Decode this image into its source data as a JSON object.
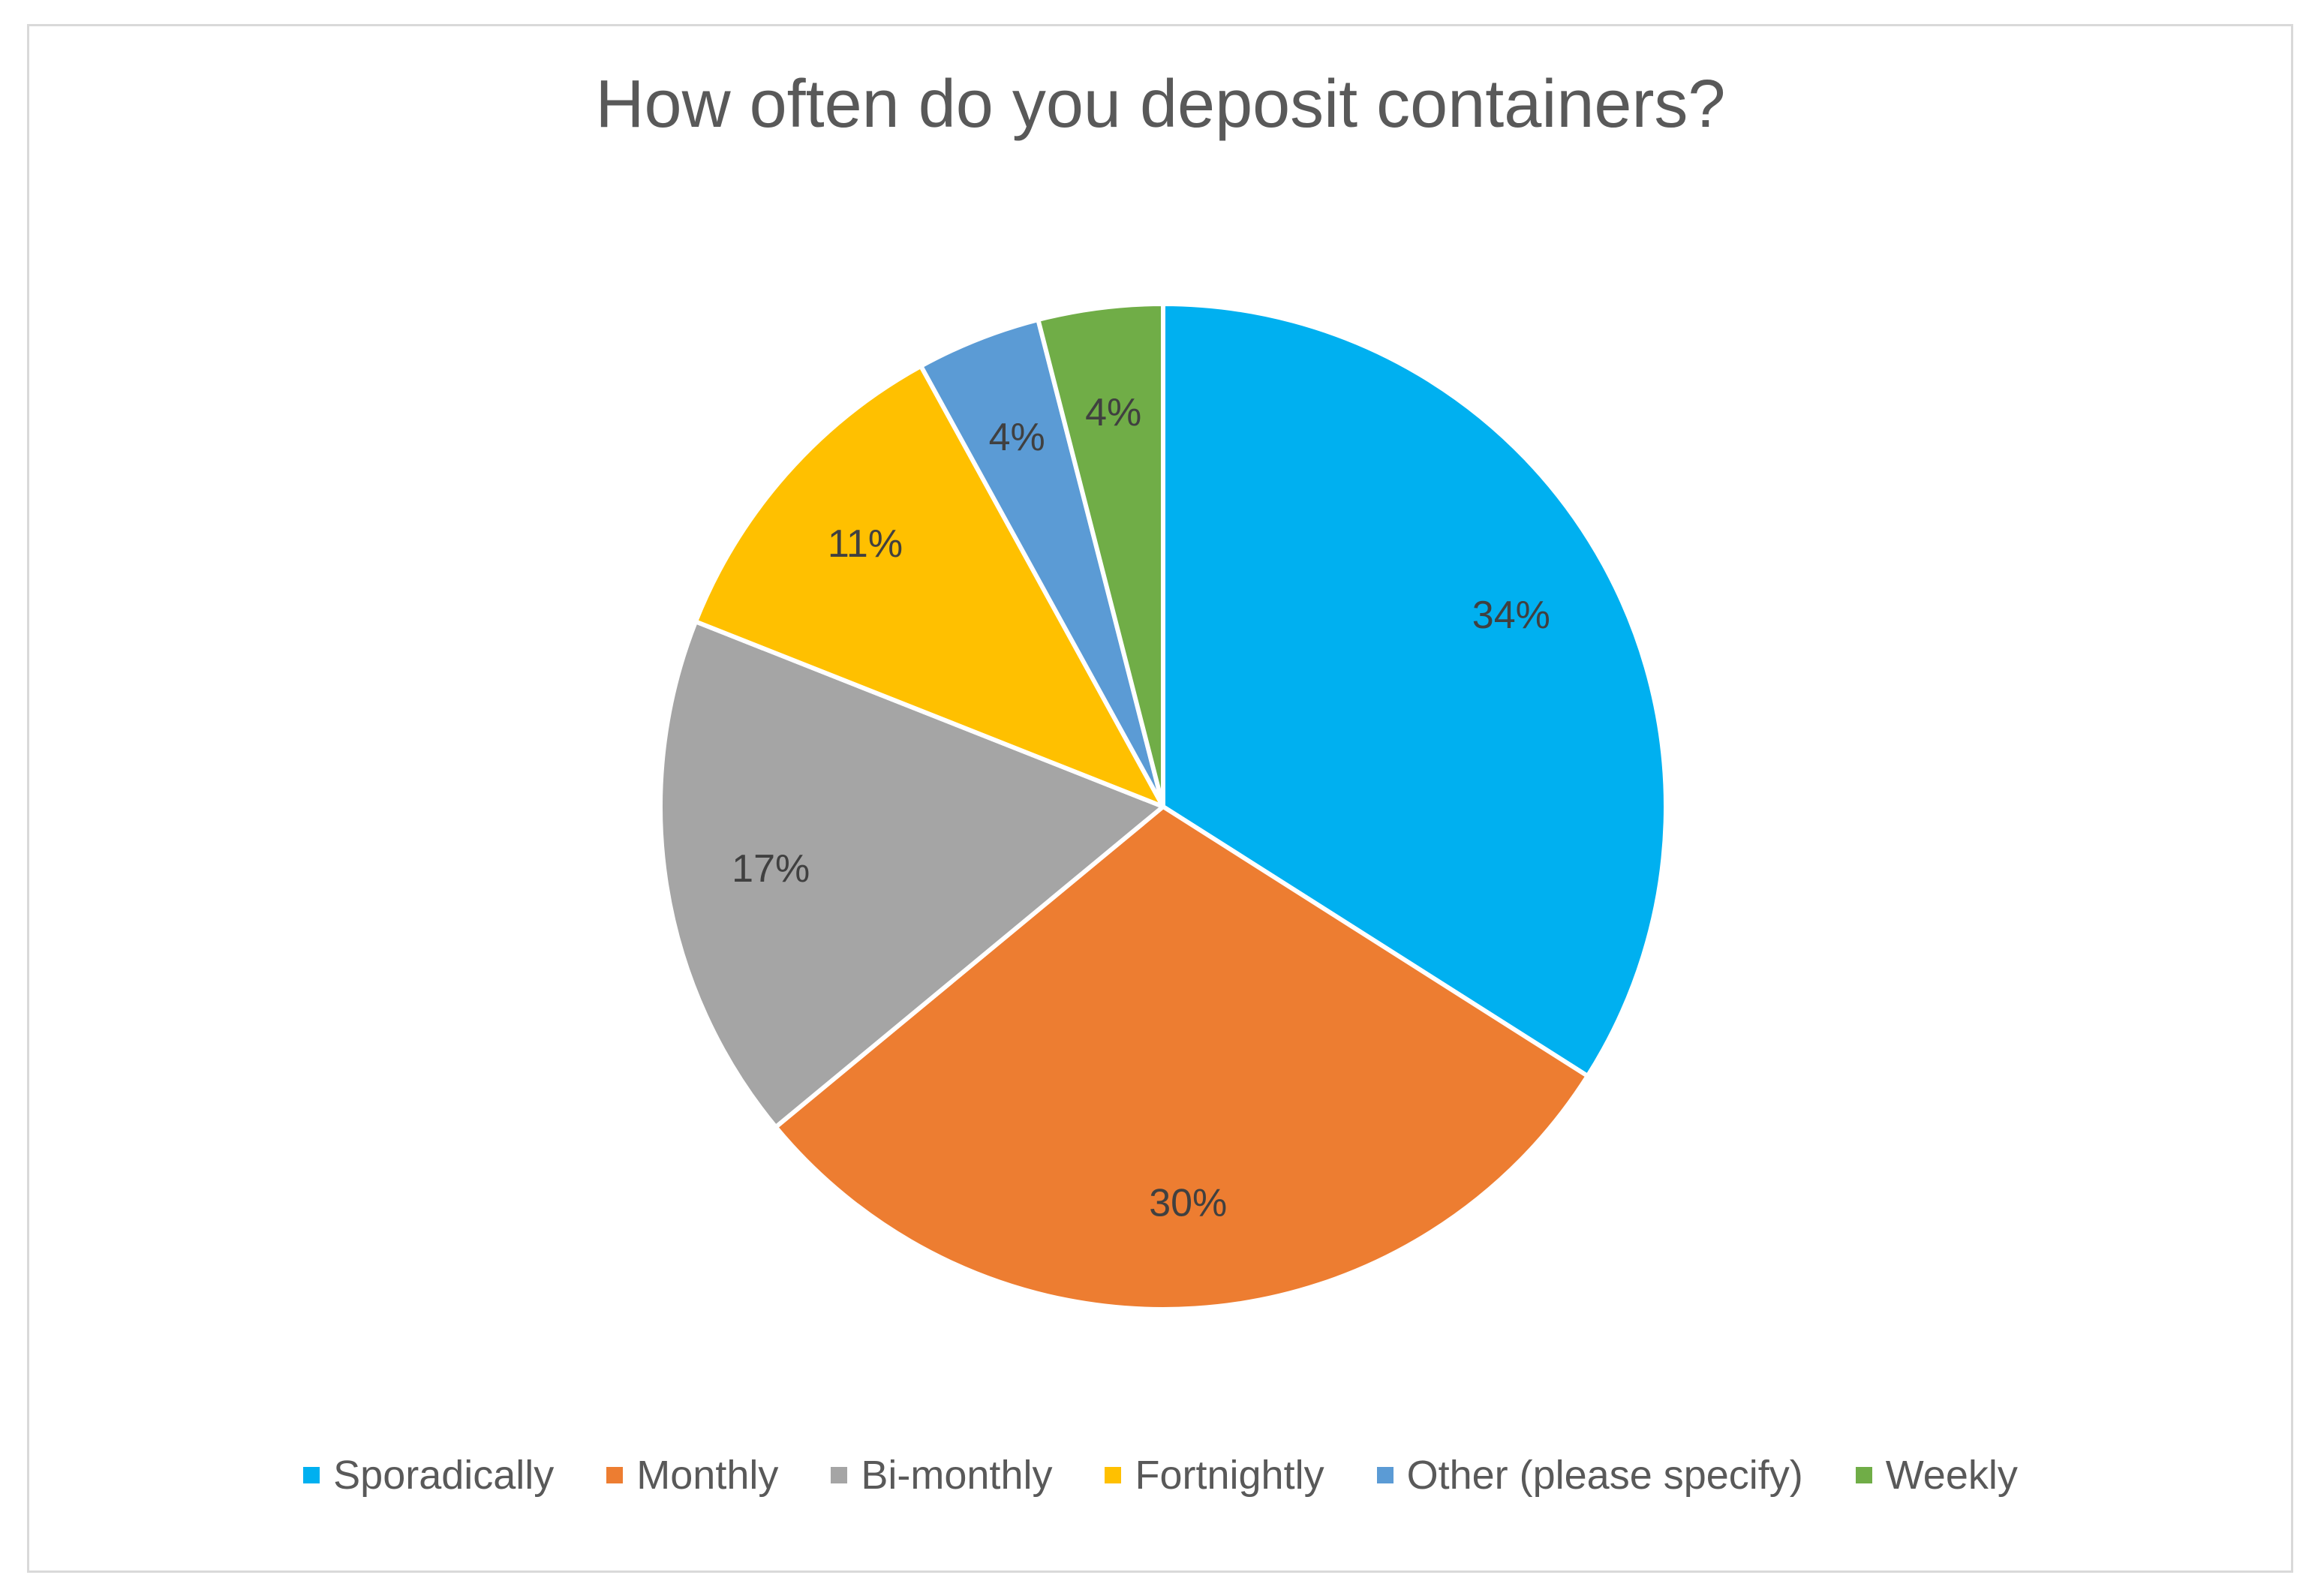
{
  "chart_data": {
    "type": "pie",
    "title": "How often do you deposit containers?",
    "legend_position": "bottom",
    "slices": [
      {
        "name": "Sporadically",
        "value": 34,
        "label": "34%",
        "color": "#00b0f0"
      },
      {
        "name": "Monthly",
        "value": 30,
        "label": "30%",
        "color": "#ed7d31"
      },
      {
        "name": "Bi-monthly",
        "value": 17,
        "label": "17%",
        "color": "#a5a5a5"
      },
      {
        "name": "Fortnightly",
        "value": 11,
        "label": "11%",
        "color": "#ffc000"
      },
      {
        "name": "Other (please specify)",
        "value": 4,
        "label": "4%",
        "color": "#5b9bd5"
      },
      {
        "name": "Weekly",
        "value": 4,
        "label": "4%",
        "color": "#70ad47"
      }
    ]
  }
}
